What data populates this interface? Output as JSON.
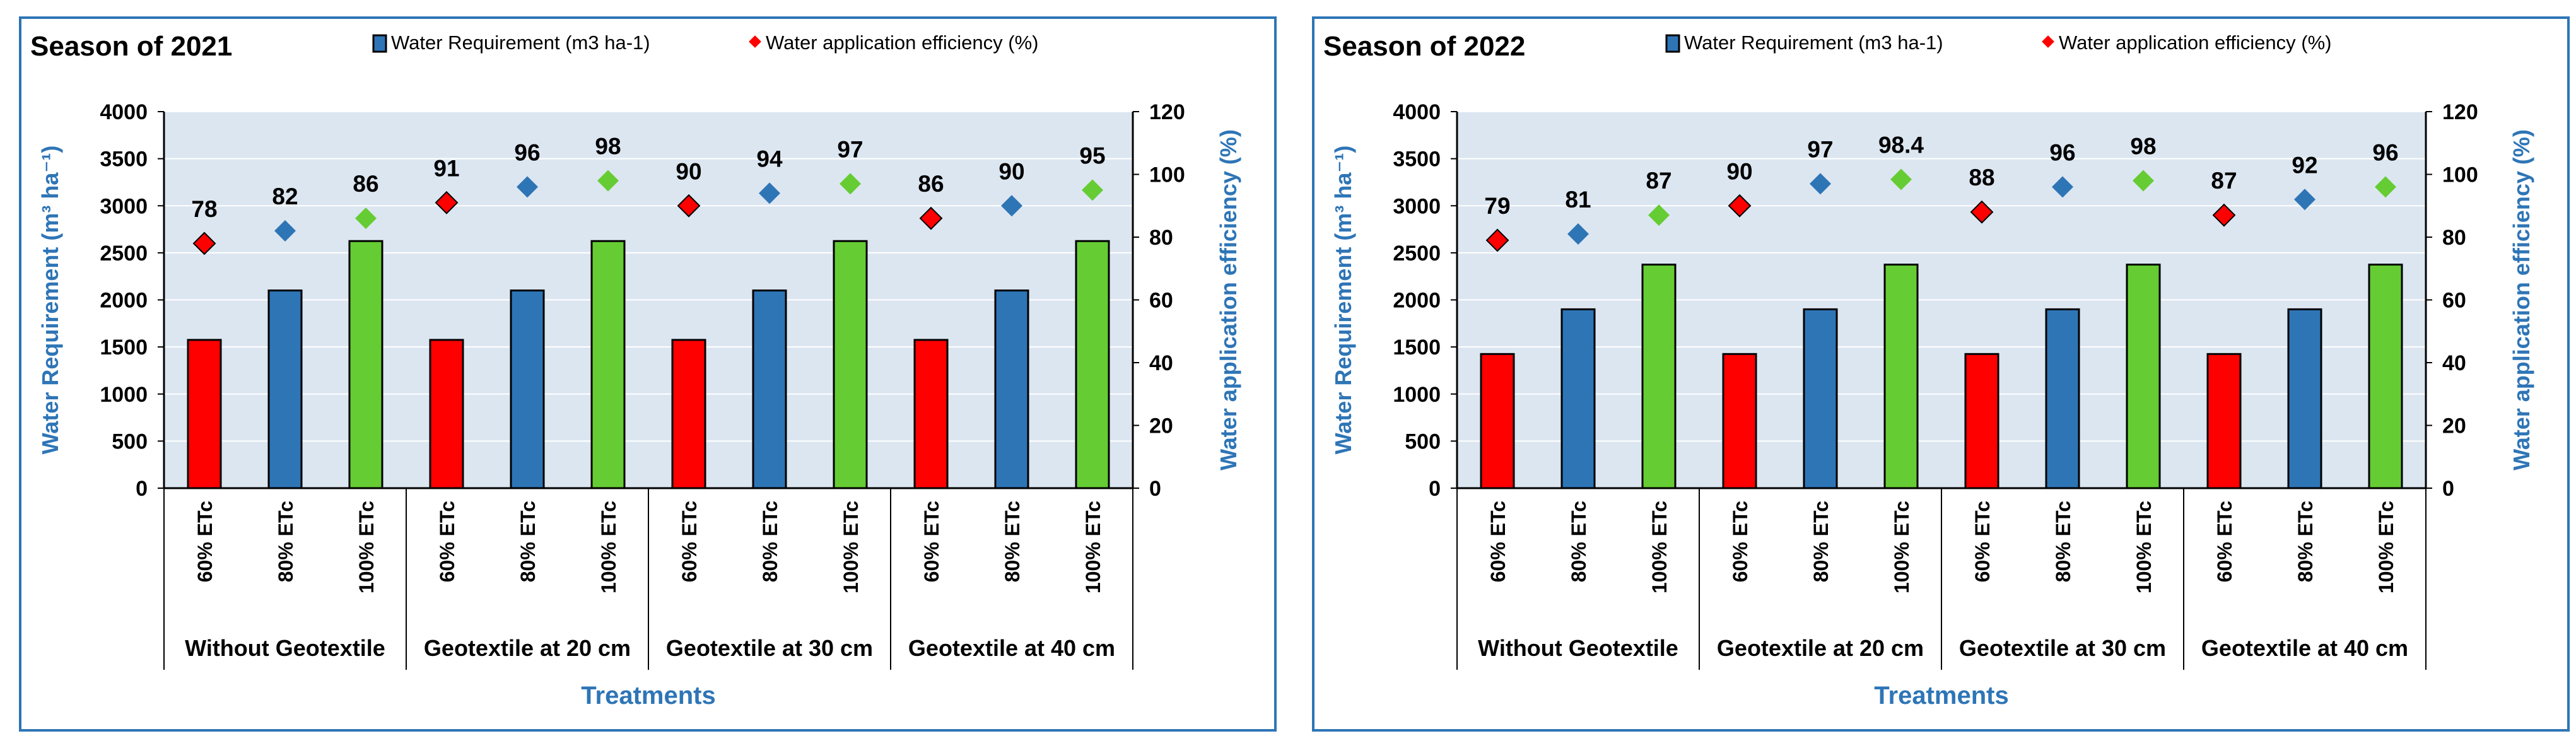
{
  "colors": {
    "plot_bg": "#dce6f1",
    "grid": "#ffffff",
    "axis_title": "#2e75b6",
    "tick": "#000000",
    "bar_60": "#ff0000",
    "bar_80": "#2e75b6",
    "bar_100": "#66cc33",
    "marker_60": "#ff0000",
    "marker_80": "#2e75b6",
    "marker_100": "#66cc33"
  },
  "chart_data": [
    {
      "type": "bar",
      "title": "Season of 2021",
      "legend": {
        "bar_label": "Water Requirement (m3 ha-1)",
        "marker_label": "Water application efficiency (%)",
        "placement": "top"
      },
      "ylabel": "Water Requirement (m³ ha⁻¹)",
      "y2label": "Water application efficiency (%)",
      "xlabel": "Treatments",
      "ylim": [
        0,
        4000
      ],
      "y_ticks": [
        0,
        500,
        1000,
        1500,
        2000,
        2500,
        3000,
        3500,
        4000
      ],
      "y2lim": [
        0,
        120
      ],
      "y2_ticks": [
        0,
        20,
        40,
        60,
        80,
        100,
        120
      ],
      "groups": [
        "Without Geotextile",
        "Geotextile at 20 cm",
        "Geotextile at 30 cm",
        "Geotextile at 40 cm"
      ],
      "categories": [
        "60% ETc",
        "80% ETc",
        "100% ETc",
        "60% ETc",
        "80% ETc",
        "100% ETc",
        "60% ETc",
        "80% ETc",
        "100% ETc",
        "60% ETc",
        "80% ETc",
        "100% ETc"
      ],
      "series": [
        {
          "name": "Water Requirement (m3 ha-1)",
          "kind": "bar",
          "axis": "left",
          "values": [
            1575,
            2100,
            2625,
            1575,
            2100,
            2625,
            1575,
            2100,
            2625,
            1575,
            2100,
            2625
          ]
        },
        {
          "name": "Water application efficiency (%)",
          "kind": "marker",
          "axis": "right",
          "values": [
            78,
            82,
            86,
            91,
            96,
            98,
            90,
            94,
            97,
            86,
            90,
            95
          ],
          "labels": [
            "78",
            "82",
            "86",
            "91",
            "96",
            "98",
            "90",
            "94",
            "97",
            "86",
            "90",
            "95"
          ]
        }
      ]
    },
    {
      "type": "bar",
      "title": "Season of 2022",
      "legend": {
        "bar_label": "Water Requirement (m3 ha-1)",
        "marker_label": "Water application efficiency (%)",
        "placement": "top"
      },
      "ylabel": "Water Requirement (m³ ha⁻¹)",
      "y2label": "Water application efficiency (%)",
      "xlabel": "Treatments",
      "ylim": [
        0,
        4000
      ],
      "y_ticks": [
        0,
        500,
        1000,
        1500,
        2000,
        2500,
        3000,
        3500,
        4000
      ],
      "y2lim": [
        0,
        120
      ],
      "y2_ticks": [
        0,
        20,
        40,
        60,
        80,
        100,
        120
      ],
      "groups": [
        "Without Geotextile",
        "Geotextile at 20 cm",
        "Geotextile at 30 cm",
        "Geotextile at 40 cm"
      ],
      "categories": [
        "60% ETc",
        "80% ETc",
        "100% ETc",
        "60% ETc",
        "80% ETc",
        "100% ETc",
        "60% ETc",
        "80% ETc",
        "100% ETc",
        "60% ETc",
        "80% ETc",
        "100% ETc"
      ],
      "series": [
        {
          "name": "Water Requirement (m3 ha-1)",
          "kind": "bar",
          "axis": "left",
          "values": [
            1425,
            1900,
            2375,
            1425,
            1900,
            2375,
            1425,
            1900,
            2375,
            1425,
            1900,
            2375
          ]
        },
        {
          "name": "Water application efficiency (%)",
          "kind": "marker",
          "axis": "right",
          "values": [
            79,
            81,
            87,
            90,
            97,
            98.4,
            88,
            96,
            98,
            87,
            92,
            96
          ],
          "labels": [
            "79",
            "81",
            "87",
            "90",
            "97",
            "98.4",
            "88",
            "96",
            "98",
            "87",
            "92",
            "96"
          ]
        }
      ]
    }
  ]
}
